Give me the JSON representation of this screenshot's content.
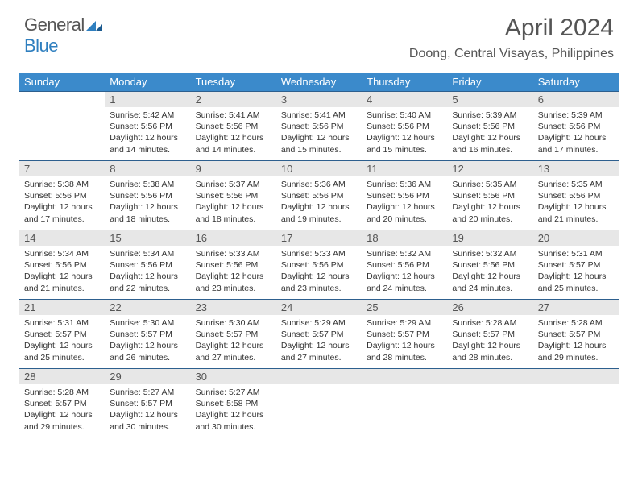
{
  "brand": {
    "part1": "General",
    "part2": "Blue"
  },
  "title": "April 2024",
  "location": "Doong, Central Visayas, Philippines",
  "colors": {
    "header_bg": "#3b8acb",
    "header_text": "#ffffff",
    "daynum_bg": "#e7e7e7",
    "border": "#2d5f8e",
    "logo_blue": "#2f7fbf",
    "text_gray": "#555555"
  },
  "weekdays": [
    "Sunday",
    "Monday",
    "Tuesday",
    "Wednesday",
    "Thursday",
    "Friday",
    "Saturday"
  ],
  "weeks": [
    [
      null,
      {
        "n": "1",
        "sr": "5:42 AM",
        "ss": "5:56 PM",
        "dl": "12 hours and 14 minutes."
      },
      {
        "n": "2",
        "sr": "5:41 AM",
        "ss": "5:56 PM",
        "dl": "12 hours and 14 minutes."
      },
      {
        "n": "3",
        "sr": "5:41 AM",
        "ss": "5:56 PM",
        "dl": "12 hours and 15 minutes."
      },
      {
        "n": "4",
        "sr": "5:40 AM",
        "ss": "5:56 PM",
        "dl": "12 hours and 15 minutes."
      },
      {
        "n": "5",
        "sr": "5:39 AM",
        "ss": "5:56 PM",
        "dl": "12 hours and 16 minutes."
      },
      {
        "n": "6",
        "sr": "5:39 AM",
        "ss": "5:56 PM",
        "dl": "12 hours and 17 minutes."
      }
    ],
    [
      {
        "n": "7",
        "sr": "5:38 AM",
        "ss": "5:56 PM",
        "dl": "12 hours and 17 minutes."
      },
      {
        "n": "8",
        "sr": "5:38 AM",
        "ss": "5:56 PM",
        "dl": "12 hours and 18 minutes."
      },
      {
        "n": "9",
        "sr": "5:37 AM",
        "ss": "5:56 PM",
        "dl": "12 hours and 18 minutes."
      },
      {
        "n": "10",
        "sr": "5:36 AM",
        "ss": "5:56 PM",
        "dl": "12 hours and 19 minutes."
      },
      {
        "n": "11",
        "sr": "5:36 AM",
        "ss": "5:56 PM",
        "dl": "12 hours and 20 minutes."
      },
      {
        "n": "12",
        "sr": "5:35 AM",
        "ss": "5:56 PM",
        "dl": "12 hours and 20 minutes."
      },
      {
        "n": "13",
        "sr": "5:35 AM",
        "ss": "5:56 PM",
        "dl": "12 hours and 21 minutes."
      }
    ],
    [
      {
        "n": "14",
        "sr": "5:34 AM",
        "ss": "5:56 PM",
        "dl": "12 hours and 21 minutes."
      },
      {
        "n": "15",
        "sr": "5:34 AM",
        "ss": "5:56 PM",
        "dl": "12 hours and 22 minutes."
      },
      {
        "n": "16",
        "sr": "5:33 AM",
        "ss": "5:56 PM",
        "dl": "12 hours and 23 minutes."
      },
      {
        "n": "17",
        "sr": "5:33 AM",
        "ss": "5:56 PM",
        "dl": "12 hours and 23 minutes."
      },
      {
        "n": "18",
        "sr": "5:32 AM",
        "ss": "5:56 PM",
        "dl": "12 hours and 24 minutes."
      },
      {
        "n": "19",
        "sr": "5:32 AM",
        "ss": "5:56 PM",
        "dl": "12 hours and 24 minutes."
      },
      {
        "n": "20",
        "sr": "5:31 AM",
        "ss": "5:57 PM",
        "dl": "12 hours and 25 minutes."
      }
    ],
    [
      {
        "n": "21",
        "sr": "5:31 AM",
        "ss": "5:57 PM",
        "dl": "12 hours and 25 minutes."
      },
      {
        "n": "22",
        "sr": "5:30 AM",
        "ss": "5:57 PM",
        "dl": "12 hours and 26 minutes."
      },
      {
        "n": "23",
        "sr": "5:30 AM",
        "ss": "5:57 PM",
        "dl": "12 hours and 27 minutes."
      },
      {
        "n": "24",
        "sr": "5:29 AM",
        "ss": "5:57 PM",
        "dl": "12 hours and 27 minutes."
      },
      {
        "n": "25",
        "sr": "5:29 AM",
        "ss": "5:57 PM",
        "dl": "12 hours and 28 minutes."
      },
      {
        "n": "26",
        "sr": "5:28 AM",
        "ss": "5:57 PM",
        "dl": "12 hours and 28 minutes."
      },
      {
        "n": "27",
        "sr": "5:28 AM",
        "ss": "5:57 PM",
        "dl": "12 hours and 29 minutes."
      }
    ],
    [
      {
        "n": "28",
        "sr": "5:28 AM",
        "ss": "5:57 PM",
        "dl": "12 hours and 29 minutes."
      },
      {
        "n": "29",
        "sr": "5:27 AM",
        "ss": "5:57 PM",
        "dl": "12 hours and 30 minutes."
      },
      {
        "n": "30",
        "sr": "5:27 AM",
        "ss": "5:58 PM",
        "dl": "12 hours and 30 minutes."
      },
      {
        "blank": true
      },
      {
        "blank": true
      },
      {
        "blank": true
      },
      {
        "blank": true
      }
    ]
  ],
  "labels": {
    "sunrise": "Sunrise:",
    "sunset": "Sunset:",
    "daylight": "Daylight:"
  }
}
